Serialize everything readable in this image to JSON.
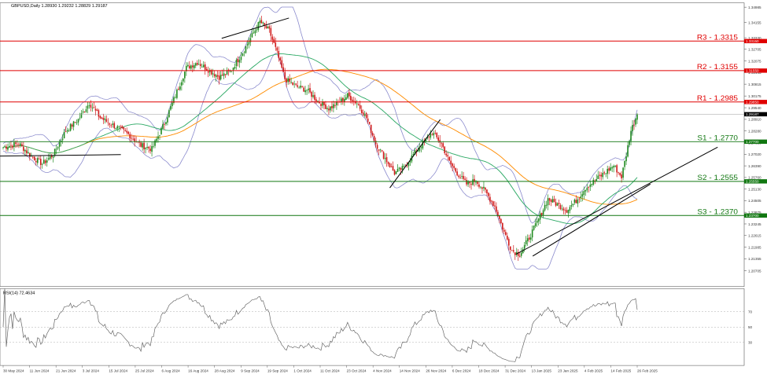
{
  "header": {
    "title": "GBPUSD,Daily  1.28930 1.29232 1.28829 1.29187"
  },
  "rsi_panel": {
    "label": "RSI(14) 72.4634"
  },
  "colors": {
    "bull": "#1f8a1f",
    "bear": "#d01818",
    "bollinger": "#8888cc",
    "ma_green": "#2eaa66",
    "ma_orange": "#ff8c00",
    "resistance": "#e00000",
    "support": "#117711",
    "rsi": "#666666"
  },
  "chart_data": [
    {
      "type": "candlestick",
      "title": "GBPUSD,Daily",
      "yticks": [
        1.34985,
        1.34155,
        1.3333,
        1.32705,
        1.32075,
        1.31445,
        1.30815,
        1.30175,
        1.2954,
        1.2891,
        1.2828,
        1.2765,
        1.2702,
        1.2639,
        1.2576,
        1.2513,
        1.24505,
        1.23875,
        1.23245,
        1.22615,
        1.21985,
        1.21355,
        1.20705
      ],
      "ylim": [
        1.207,
        1.3499
      ],
      "xticks": [
        "30 May 2024",
        "11 Jun 2024",
        "21 Jun 2024",
        "3 Jul 2024",
        "15 Jul 2024",
        "25 Jul 2024",
        "6 Aug 2024",
        "16 Aug 2024",
        "28 Aug 2024",
        "9 Sep 2024",
        "19 Sep 2024",
        "1 Oct 2024",
        "11 Oct 2024",
        "23 Oct 2024",
        "4 Nov 2024",
        "14 Nov 2024",
        "26 Nov 2024",
        "6 Dec 2024",
        "18 Dec 2024",
        "31 Dec 2024",
        "13 Jan 2025",
        "23 Jan 2025",
        "4 Feb 2025",
        "14 Feb 2025",
        "26 Feb 2025"
      ],
      "current_price_label": "1.29187",
      "levels": [
        {
          "label": "R3 - 1.3315",
          "tag": "1.33150",
          "value": 1.3315,
          "kind": "resistance"
        },
        {
          "label": "R2 - 1.3155",
          "tag": "1.31550",
          "value": 1.3155,
          "kind": "resistance"
        },
        {
          "label": "R1 - 1.2985",
          "tag": "1.29850",
          "value": 1.2985,
          "kind": "resistance"
        },
        {
          "label": "S1 - 1.2770",
          "tag": "1.27700",
          "value": 1.277,
          "kind": "support"
        },
        {
          "label": "S2 - 1.2555",
          "tag": "1.25550",
          "value": 1.2555,
          "kind": "support"
        },
        {
          "label": "S3 - 1.2370",
          "tag": "1.23700",
          "value": 1.237,
          "kind": "support"
        }
      ],
      "close_anchors": [
        [
          0,
          1.274
        ],
        [
          10,
          1.276
        ],
        [
          18,
          1.269
        ],
        [
          25,
          1.265
        ],
        [
          32,
          1.27
        ],
        [
          40,
          1.283
        ],
        [
          48,
          1.289
        ],
        [
          55,
          1.298
        ],
        [
          62,
          1.29
        ],
        [
          72,
          1.285
        ],
        [
          80,
          1.281
        ],
        [
          88,
          1.275
        ],
        [
          95,
          1.273
        ],
        [
          103,
          1.287
        ],
        [
          110,
          1.302
        ],
        [
          117,
          1.317
        ],
        [
          124,
          1.32
        ],
        [
          131,
          1.316
        ],
        [
          138,
          1.312
        ],
        [
          145,
          1.315
        ],
        [
          152,
          1.324
        ],
        [
          158,
          1.333
        ],
        [
          164,
          1.342
        ],
        [
          170,
          1.337
        ],
        [
          175,
          1.325
        ],
        [
          180,
          1.311
        ],
        [
          187,
          1.307
        ],
        [
          194,
          1.305
        ],
        [
          201,
          1.299
        ],
        [
          208,
          1.295
        ],
        [
          214,
          1.298
        ],
        [
          220,
          1.302
        ],
        [
          226,
          1.298
        ],
        [
          232,
          1.29
        ],
        [
          238,
          1.276
        ],
        [
          244,
          1.268
        ],
        [
          250,
          1.26
        ],
        [
          256,
          1.263
        ],
        [
          262,
          1.27
        ],
        [
          268,
          1.276
        ],
        [
          274,
          1.282
        ],
        [
          280,
          1.276
        ],
        [
          285,
          1.266
        ],
        [
          290,
          1.26
        ],
        [
          296,
          1.254
        ],
        [
          302,
          1.256
        ],
        [
          308,
          1.25
        ],
        [
          314,
          1.242
        ],
        [
          320,
          1.228
        ],
        [
          325,
          1.218
        ],
        [
          330,
          1.216
        ],
        [
          336,
          1.225
        ],
        [
          342,
          1.235
        ],
        [
          348,
          1.246
        ],
        [
          354,
          1.243
        ],
        [
          360,
          1.24
        ],
        [
          366,
          1.245
        ],
        [
          372,
          1.252
        ],
        [
          378,
          1.256
        ],
        [
          384,
          1.26
        ],
        [
          390,
          1.264
        ],
        [
          395,
          1.258
        ],
        [
          398,
          1.27
        ],
        [
          401,
          1.283
        ],
        [
          405,
          1.2919
        ]
      ],
      "trendlines": [
        {
          "from": [
            2024.37,
            1.269
          ],
          "to": [
            2024.55,
            1.27
          ]
        },
        {
          "from": [
            2024.67,
            1.333
          ],
          "to": [
            2024.75,
            1.344
          ]
        },
        {
          "from": [
            2024.87,
            1.252
          ],
          "to": [
            2024.93,
            1.289
          ]
        },
        {
          "from": [
            2025.04,
            1.215
          ],
          "to": [
            2025.18,
            1.254
          ]
        },
        {
          "from": [
            2025.02,
            1.216
          ],
          "to": [
            2025.26,
            1.274
          ]
        }
      ],
      "rsi_levels": [
        "70",
        "50",
        "30"
      ],
      "rsi_value": 72.4634
    }
  ]
}
